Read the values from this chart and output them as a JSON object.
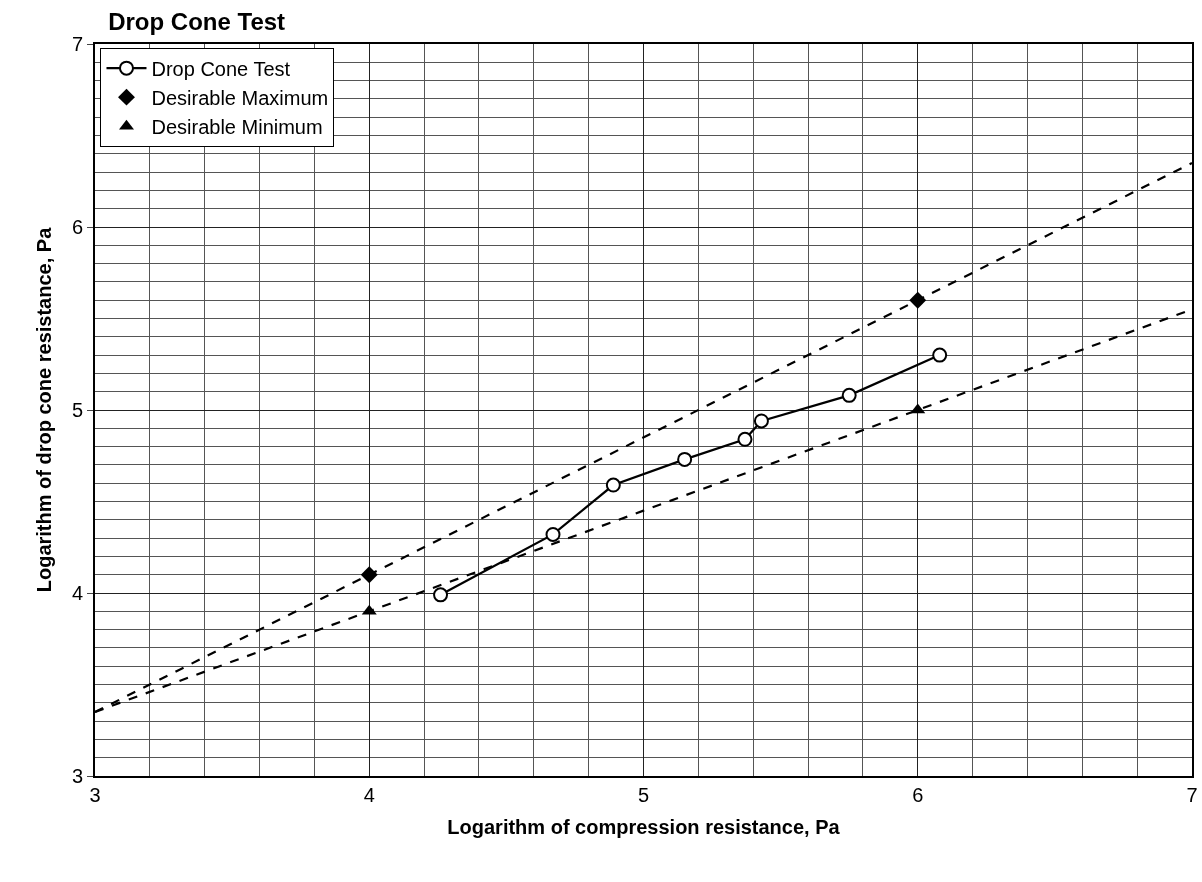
{
  "chart_data": {
    "type": "scatter",
    "title": "Drop Cone Test",
    "xlabel": "Logarithm of compression resistance, Pa",
    "ylabel": "Logarithm of drop cone resistance, Pa",
    "xlim": [
      3,
      7
    ],
    "ylim": [
      3,
      7
    ],
    "xticks": [
      3,
      4,
      5,
      6,
      7
    ],
    "yticks": [
      3,
      4,
      5,
      6,
      7
    ],
    "grid": true,
    "legend": "top left",
    "series": [
      {
        "name": "Drop Cone Test",
        "type": "line",
        "marker": "circle",
        "line_style": "solid",
        "color": "#000000",
        "x": [
          4.26,
          4.67,
          4.89,
          5.15,
          5.37,
          5.43,
          5.75,
          6.08
        ],
        "values": [
          3.99,
          4.32,
          4.59,
          4.73,
          4.84,
          4.94,
          5.08,
          5.3
        ]
      },
      {
        "name": "Desirable Maximum",
        "marker": "diamond",
        "color": "#000000",
        "x": [
          4,
          6
        ],
        "values": [
          4.1,
          5.6
        ]
      },
      {
        "name": "Desirable Minimum",
        "marker": "triangle",
        "color": "#000000",
        "x": [
          4,
          6
        ],
        "values": [
          3.9,
          5.0
        ]
      },
      {
        "type": "line",
        "marker": "none",
        "line_style": "dashed",
        "color": "#000000",
        "x": [
          3,
          7
        ],
        "values": [
          3.35,
          6.35
        ]
      },
      {
        "type": "line",
        "marker": "none",
        "line_style": "dashed",
        "color": "#000000",
        "x": [
          3,
          7
        ],
        "values": [
          3.35,
          5.55
        ]
      }
    ]
  }
}
